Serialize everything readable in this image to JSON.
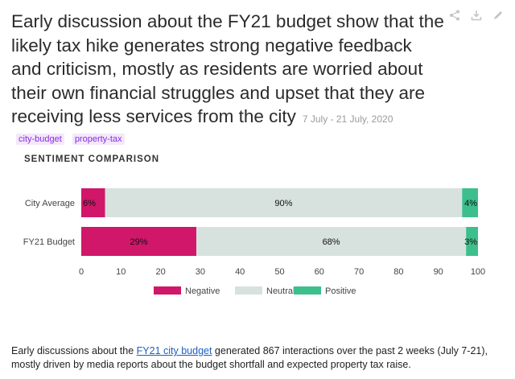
{
  "headline": {
    "text": "Early discussion about the FY21 budget show that the likely tax hike generates strong negative feedback and criticism, mostly as residents are worried about their own financial struggles and upset that they are receiving less services from the city",
    "date_range": "7 July - 21 July, 2020"
  },
  "toolbar": {
    "share_icon": "share-icon",
    "download_icon": "download-icon",
    "edit_icon": "pencil-icon"
  },
  "tags": [
    "city-budget",
    "property-tax"
  ],
  "section_title": "SENTIMENT COMPARISON",
  "chart_data": {
    "type": "bar",
    "orientation": "horizontal",
    "stacked": true,
    "title": "SENTIMENT COMPARISON",
    "categories": [
      "City Average",
      "FY21 Budget"
    ],
    "series": [
      {
        "name": "Negative",
        "values": [
          6,
          29
        ],
        "color": "#d0176a"
      },
      {
        "name": "Neutral",
        "values": [
          90,
          68
        ],
        "color": "#d7e2df"
      },
      {
        "name": "Positive",
        "values": [
          4,
          3
        ],
        "color": "#3cbf8c"
      }
    ],
    "data_labels": [
      [
        "6%",
        "90%",
        "4%"
      ],
      [
        "29%",
        "68%",
        "3%"
      ]
    ],
    "xlim": [
      0,
      100
    ],
    "xticks": [
      0,
      10,
      20,
      30,
      40,
      50,
      60,
      70,
      80,
      90,
      100
    ],
    "legend_position": "bottom",
    "grid": false
  },
  "footer": {
    "before": "Early discussions about the ",
    "link": "FY21 city budget",
    "after": " generated 867 interactions over the past 2 weeks (July 7-21), mostly driven by media reports about the budget shortfall and expected property tax raise."
  }
}
